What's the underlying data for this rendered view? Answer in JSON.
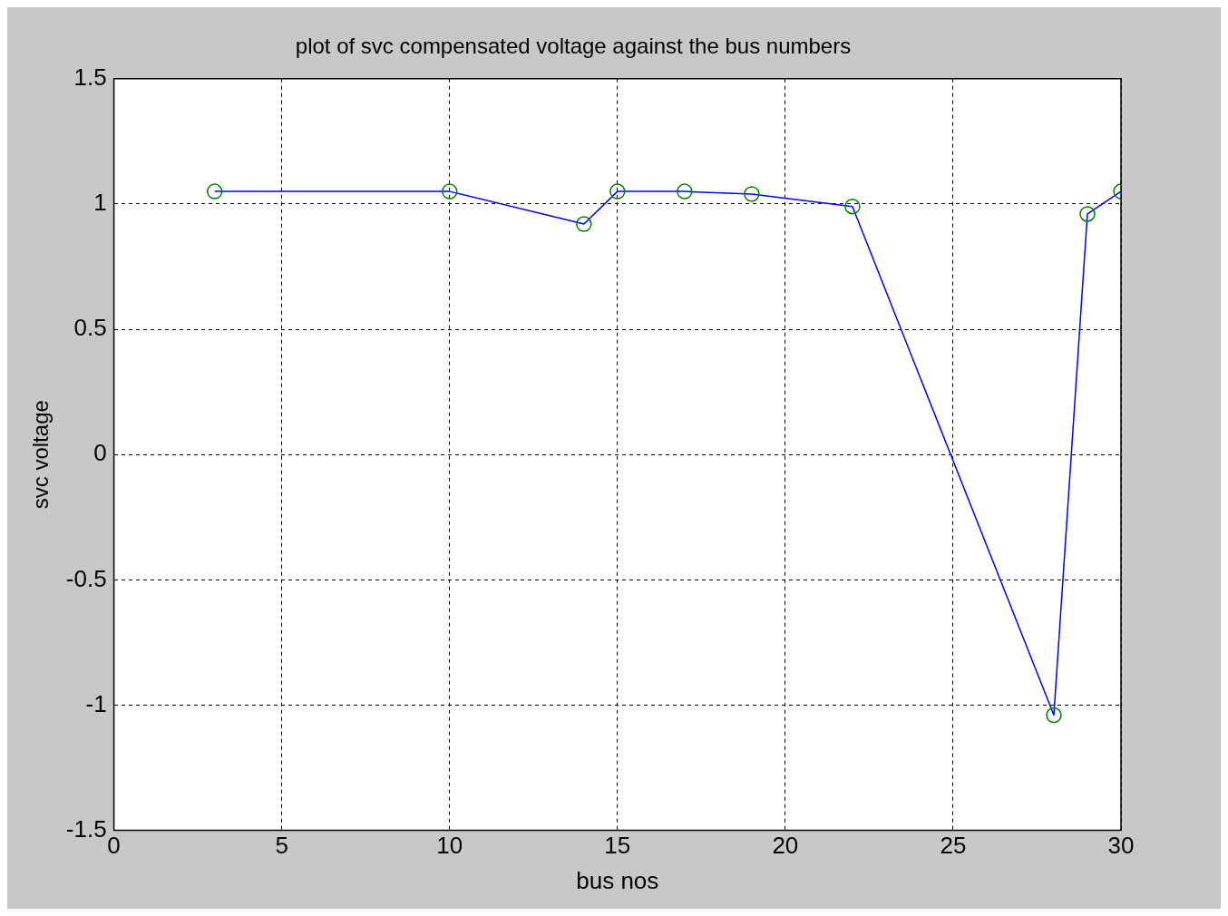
{
  "chart_data": {
    "type": "line",
    "title": "plot of svc compensated voltage against the bus numbers",
    "xlabel": "bus nos",
    "ylabel": "svc voltage",
    "x": [
      3,
      10,
      14,
      15,
      17,
      19,
      22,
      28,
      29,
      30
    ],
    "series": [
      {
        "color": "#0000ff",
        "colors": [
          "#008000",
          "#008000",
          "#008000",
          "#008000",
          "#008000",
          "#008000",
          "#008000",
          "#008000",
          "#008000",
          "#008000"
        ],
        "values": [
          1.05,
          1.05,
          0.92,
          1.05,
          1.05,
          1.04,
          0.99,
          -1.04,
          0.96,
          1.05
        ]
      }
    ],
    "marker": "circle",
    "xlim": [
      0,
      30
    ],
    "xticks": [
      0,
      5,
      10,
      15,
      20,
      25,
      30
    ],
    "ylim": [
      -1.5,
      1.5
    ],
    "yticks": [
      -1.5,
      -1,
      -0.5,
      0,
      0.5,
      1,
      1.5
    ],
    "grid": true,
    "legend": false,
    "line_style": "solid"
  }
}
